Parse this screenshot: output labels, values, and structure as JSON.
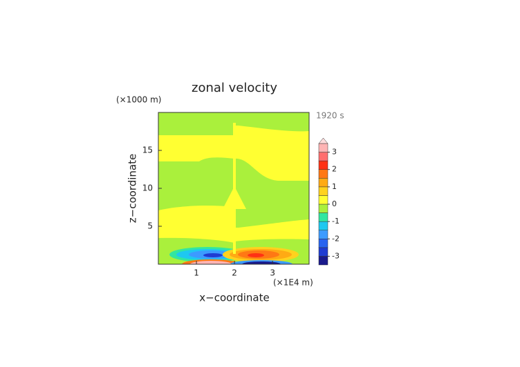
{
  "chart_data": {
    "type": "contour",
    "title": "zonal velocity",
    "xlabel": "x−coordinate",
    "ylabel": "z−coordinate",
    "xunit": "(×1E4 m)",
    "yunit": "(×1000 m)",
    "time_label": "1920 s",
    "xlim": [
      0,
      3.96
    ],
    "ylim": [
      0,
      20
    ],
    "xticks": [
      1,
      2,
      3
    ],
    "yticks": [
      5,
      10,
      15
    ],
    "colorbar": {
      "levels": [
        -3.5,
        -3,
        -2.5,
        -2,
        -1.5,
        -1,
        -0.5,
        0,
        0.5,
        1,
        1.5,
        2,
        2.5,
        3,
        3.5
      ],
      "colors": [
        "#1a1a8c",
        "#1f3cd2",
        "#2864f0",
        "#3c9bff",
        "#1ec8f0",
        "#32e6a0",
        "#aaf03c",
        "#ffff32",
        "#ffd21e",
        "#ffaa14",
        "#ff7814",
        "#ff3214",
        "#ff6e6e",
        "#ffb4b4"
      ],
      "extend_color": "#ffdcdc",
      "ticks": [
        -3,
        -2,
        -1,
        0,
        1,
        2,
        3
      ]
    }
  }
}
